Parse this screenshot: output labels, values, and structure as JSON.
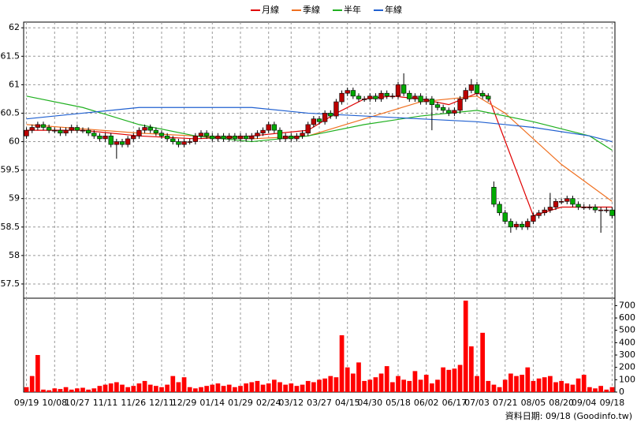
{
  "chart_data": [
    {
      "type": "candlestick",
      "categories": [
        "09/19",
        null,
        null,
        null,
        null,
        "10/08",
        null,
        null,
        null,
        "10/27",
        null,
        null,
        null,
        null,
        "11/11",
        null,
        null,
        null,
        null,
        "11/26",
        null,
        null,
        null,
        null,
        "12/11",
        null,
        null,
        null,
        "12/29",
        null,
        null,
        null,
        null,
        "01/14",
        null,
        null,
        null,
        null,
        "01/29",
        null,
        null,
        null,
        null,
        "02/24",
        null,
        null,
        null,
        "03/12",
        null,
        null,
        null,
        null,
        "03/27",
        null,
        null,
        null,
        null,
        "04/15",
        null,
        null,
        null,
        "04/30",
        null,
        null,
        null,
        null,
        "05/18",
        null,
        null,
        null,
        null,
        "06/02",
        null,
        null,
        null,
        null,
        "06/17",
        null,
        null,
        null,
        "07/03",
        null,
        null,
        null,
        null,
        "07/21",
        null,
        null,
        null,
        null,
        "08/05",
        null,
        null,
        null,
        null,
        "08/20",
        null,
        null,
        null,
        "09/04",
        null,
        null,
        null,
        null,
        "09/18"
      ],
      "open": [
        60.1,
        60.2,
        60.25,
        60.3,
        60.25,
        60.2,
        60.2,
        60.15,
        60.2,
        60.25,
        60.2,
        60.2,
        60.15,
        60.1,
        60.05,
        60.1,
        59.95,
        60.0,
        59.95,
        60.05,
        60.1,
        60.2,
        60.25,
        60.2,
        60.15,
        60.1,
        60.05,
        60.0,
        59.95,
        60.0,
        60.0,
        60.1,
        60.15,
        60.1,
        60.05,
        60.1,
        60.05,
        60.1,
        60.05,
        60.1,
        60.05,
        60.1,
        60.15,
        60.2,
        60.3,
        60.2,
        60.05,
        60.1,
        60.05,
        60.1,
        60.15,
        60.3,
        60.4,
        60.35,
        60.5,
        60.45,
        60.7,
        60.85,
        60.9,
        60.8,
        60.75,
        60.75,
        60.8,
        60.75,
        60.85,
        60.8,
        60.8,
        61.0,
        60.85,
        60.75,
        60.8,
        60.7,
        60.75,
        60.65,
        60.6,
        60.55,
        60.5,
        60.55,
        60.75,
        60.9,
        61.0,
        60.85,
        60.8,
        59.2,
        58.9,
        58.75,
        58.6,
        58.5,
        58.55,
        58.5,
        58.6,
        58.7,
        58.75,
        58.8,
        58.85,
        58.95,
        58.95,
        59.0,
        58.9,
        58.85,
        58.85,
        58.85,
        58.8,
        58.8,
        58.8
      ],
      "high": [
        60.25,
        60.3,
        60.35,
        60.35,
        60.3,
        60.25,
        60.25,
        60.25,
        60.3,
        60.3,
        60.25,
        60.25,
        60.2,
        60.15,
        60.15,
        60.15,
        60.05,
        60.05,
        60.1,
        60.15,
        60.25,
        60.3,
        60.3,
        60.25,
        60.2,
        60.15,
        60.1,
        60.05,
        60.05,
        60.05,
        60.15,
        60.2,
        60.2,
        60.15,
        60.15,
        60.15,
        60.15,
        60.15,
        60.15,
        60.15,
        60.15,
        60.2,
        60.25,
        60.35,
        60.35,
        60.25,
        60.15,
        60.15,
        60.15,
        60.2,
        60.35,
        60.45,
        60.45,
        60.55,
        60.55,
        60.75,
        60.9,
        60.95,
        60.95,
        60.85,
        60.8,
        60.85,
        60.85,
        60.9,
        60.9,
        60.85,
        61.05,
        61.2,
        60.9,
        60.85,
        60.85,
        60.8,
        60.8,
        60.7,
        60.65,
        60.6,
        60.6,
        60.8,
        60.95,
        61.1,
        61.05,
        60.9,
        60.85,
        59.3,
        58.95,
        58.8,
        58.65,
        58.6,
        58.6,
        58.65,
        58.75,
        58.8,
        58.85,
        59.1,
        59.0,
        59.0,
        59.05,
        59.05,
        58.95,
        58.9,
        58.9,
        58.9,
        58.85,
        58.85,
        58.85
      ],
      "low": [
        60.05,
        60.15,
        60.2,
        60.2,
        60.15,
        60.15,
        60.1,
        60.1,
        60.15,
        60.15,
        60.15,
        60.1,
        60.05,
        60.0,
        60.0,
        59.9,
        59.7,
        59.9,
        59.9,
        60.0,
        60.05,
        60.15,
        60.15,
        60.1,
        60.05,
        60.0,
        59.95,
        59.9,
        59.9,
        59.95,
        59.95,
        60.05,
        60.05,
        60.0,
        60.0,
        60.0,
        60.0,
        60.0,
        60.0,
        60.0,
        60.0,
        60.05,
        60.1,
        60.15,
        60.15,
        60.0,
        60.0,
        60.0,
        60.0,
        60.05,
        60.1,
        60.25,
        60.3,
        60.3,
        60.4,
        60.4,
        60.65,
        60.8,
        60.75,
        60.7,
        60.7,
        60.7,
        60.7,
        60.7,
        60.75,
        60.75,
        60.75,
        60.8,
        60.7,
        60.7,
        60.65,
        60.65,
        60.2,
        60.55,
        60.5,
        60.45,
        60.45,
        60.5,
        60.7,
        60.85,
        60.8,
        60.75,
        60.7,
        58.85,
        58.7,
        58.55,
        58.4,
        58.45,
        58.45,
        58.45,
        58.55,
        58.65,
        58.7,
        58.75,
        58.8,
        58.9,
        58.9,
        58.85,
        58.8,
        58.8,
        58.8,
        58.75,
        58.4,
        58.75,
        58.65
      ],
      "close": [
        60.2,
        60.25,
        60.3,
        60.25,
        60.2,
        60.2,
        60.15,
        60.2,
        60.25,
        60.2,
        60.2,
        60.15,
        60.1,
        60.05,
        60.1,
        59.95,
        60.0,
        59.95,
        60.05,
        60.1,
        60.2,
        60.25,
        60.2,
        60.15,
        60.1,
        60.05,
        60.0,
        59.95,
        60.0,
        60.0,
        60.1,
        60.15,
        60.1,
        60.05,
        60.1,
        60.05,
        60.1,
        60.05,
        60.1,
        60.05,
        60.1,
        60.15,
        60.2,
        60.3,
        60.2,
        60.05,
        60.1,
        60.05,
        60.1,
        60.15,
        60.3,
        60.4,
        60.35,
        60.5,
        60.45,
        60.7,
        60.85,
        60.9,
        60.8,
        60.75,
        60.75,
        60.8,
        60.75,
        60.85,
        60.8,
        60.8,
        61.0,
        60.85,
        60.75,
        60.8,
        60.7,
        60.75,
        60.65,
        60.6,
        60.55,
        60.5,
        60.55,
        60.75,
        60.9,
        61.0,
        60.85,
        60.8,
        60.75,
        58.9,
        58.75,
        58.6,
        58.5,
        58.55,
        58.5,
        58.6,
        58.7,
        58.75,
        58.8,
        58.85,
        58.95,
        58.95,
        59.0,
        58.9,
        58.85,
        58.85,
        58.85,
        58.8,
        58.8,
        58.8,
        58.7
      ],
      "up_color": "#bb0000",
      "down_color": "#00aa00",
      "series": [
        {
          "name": "月線",
          "color": "#e00000",
          "x": [
            0,
            10,
            20,
            30,
            40,
            50,
            55,
            60,
            65,
            70,
            75,
            80,
            82,
            90,
            95,
            100,
            104
          ],
          "values": [
            60.2,
            60.2,
            60.1,
            60.05,
            60.1,
            60.2,
            60.5,
            60.75,
            60.8,
            60.75,
            60.65,
            60.85,
            60.8,
            58.7,
            58.85,
            58.85,
            58.85
          ]
        },
        {
          "name": "季線",
          "color": "#f07020",
          "x": [
            0,
            20,
            40,
            50,
            60,
            70,
            80,
            85,
            95,
            104
          ],
          "values": [
            60.3,
            60.15,
            60.05,
            60.1,
            60.4,
            60.7,
            60.8,
            60.5,
            59.6,
            58.95
          ]
        },
        {
          "name": "半年",
          "color": "#20b020",
          "x": [
            0,
            10,
            20,
            30,
            40,
            50,
            60,
            70,
            80,
            90,
            100,
            104
          ],
          "values": [
            60.8,
            60.6,
            60.3,
            60.1,
            60.0,
            60.1,
            60.3,
            60.45,
            60.55,
            60.35,
            60.1,
            59.85
          ]
        },
        {
          "name": "年線",
          "color": "#2060d0",
          "x": [
            0,
            10,
            20,
            30,
            40,
            50,
            60,
            70,
            80,
            90,
            100,
            104
          ],
          "values": [
            60.4,
            60.5,
            60.6,
            60.6,
            60.6,
            60.5,
            60.45,
            60.4,
            60.35,
            60.25,
            60.1,
            60.0
          ]
        }
      ],
      "ylim": [
        57.25,
        62.1
      ],
      "yticks": [
        57.5,
        58,
        58.5,
        59,
        59.5,
        60,
        60.5,
        61,
        61.5,
        62
      ],
      "grid": true
    },
    {
      "type": "bar",
      "values": [
        40,
        130,
        300,
        20,
        15,
        30,
        25,
        40,
        20,
        30,
        35,
        20,
        30,
        50,
        60,
        70,
        80,
        60,
        40,
        50,
        70,
        90,
        60,
        50,
        40,
        60,
        130,
        80,
        120,
        40,
        30,
        40,
        50,
        60,
        70,
        50,
        60,
        40,
        50,
        70,
        80,
        90,
        60,
        70,
        100,
        80,
        60,
        70,
        50,
        60,
        90,
        80,
        100,
        110,
        130,
        120,
        460,
        200,
        150,
        240,
        90,
        100,
        120,
        150,
        210,
        80,
        130,
        100,
        90,
        170,
        100,
        140,
        70,
        100,
        200,
        180,
        190,
        220,
        740,
        370,
        130,
        480,
        90,
        60,
        40,
        100,
        150,
        130,
        140,
        200,
        90,
        110,
        120,
        130,
        80,
        90,
        70,
        60,
        110,
        140,
        40,
        30,
        50,
        20,
        40
      ],
      "color": "#ff0000",
      "ylim": [
        0,
        760
      ],
      "yticks": [
        0,
        100,
        200,
        300,
        400,
        500,
        600,
        700
      ],
      "grid": true
    },
    {
      "footer": "資料日期: 09/18  (Goodinfo.tw)"
    }
  ]
}
